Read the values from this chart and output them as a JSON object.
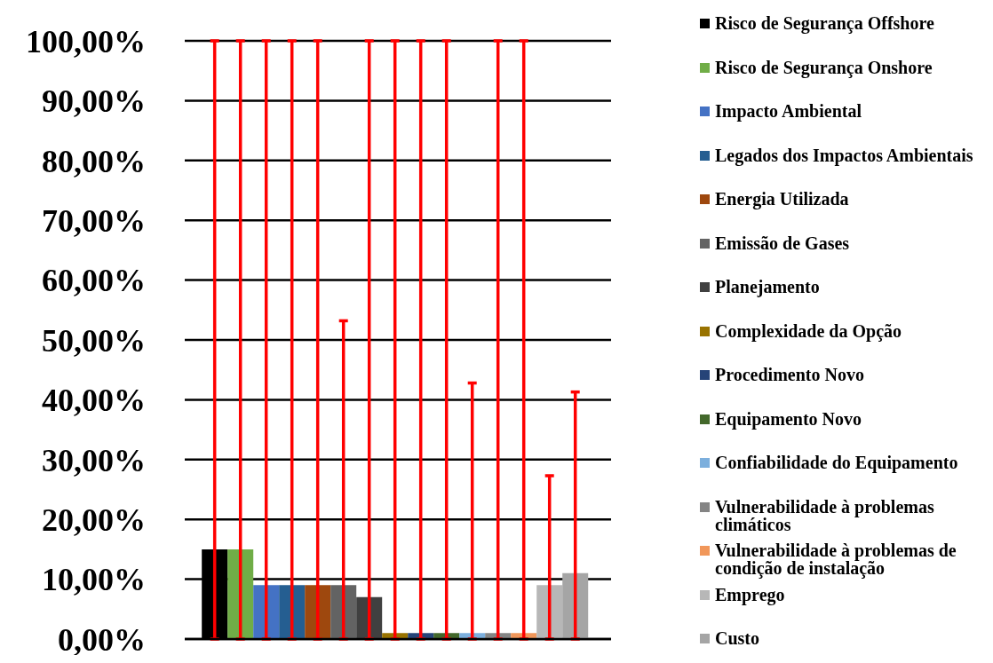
{
  "chart_data": {
    "type": "bar",
    "categories": [
      null
    ],
    "series": [
      {
        "name": "Risco de Segurança Offshore",
        "color": "#000000",
        "values": [
          15
        ],
        "errors": [
          [
            0,
            100
          ]
        ]
      },
      {
        "name": "Risco de Segurança Onshore",
        "color": "#70ad47",
        "values": [
          15
        ],
        "errors": [
          [
            0,
            100
          ]
        ]
      },
      {
        "name": "Impacto Ambiental",
        "color": "#4472c4",
        "values": [
          9
        ],
        "errors": [
          [
            0,
            100
          ]
        ]
      },
      {
        "name": "Legados dos Impactos Ambientais",
        "color": "#255e91",
        "values": [
          9
        ],
        "errors": [
          [
            0,
            100
          ]
        ]
      },
      {
        "name": "Energia Utilizada",
        "color": "#9e480e",
        "values": [
          9
        ],
        "errors": [
          [
            0,
            100
          ]
        ]
      },
      {
        "name": "Emissão de Gases",
        "color": "#636363",
        "values": [
          9
        ],
        "errors": [
          [
            0,
            53.2
          ]
        ]
      },
      {
        "name": "Planejamento",
        "color": "#404040",
        "values": [
          7
        ],
        "errors": [
          [
            0,
            100
          ]
        ]
      },
      {
        "name": "Complexidade da Opção",
        "color": "#997300",
        "values": [
          1
        ],
        "errors": [
          [
            0,
            100
          ]
        ]
      },
      {
        "name": "Procedimento Novo",
        "color": "#264478",
        "values": [
          1
        ],
        "errors": [
          [
            0,
            100
          ]
        ]
      },
      {
        "name": "Equipamento Novo",
        "color": "#43682b",
        "values": [
          1
        ],
        "errors": [
          [
            0,
            100
          ]
        ]
      },
      {
        "name": "Confiabilidade do Equipamento",
        "color": "#7cafdd",
        "values": [
          1
        ],
        "errors": [
          [
            0,
            42.8
          ]
        ]
      },
      {
        "name": "Vulnerabilidade à problemas climáticos",
        "color": "#848484",
        "values": [
          1
        ],
        "errors": [
          [
            0,
            100
          ]
        ]
      },
      {
        "name": "Vulnerabilidade à problemas de condição de instalação",
        "color": "#f1975a",
        "values": [
          1
        ],
        "errors": [
          [
            0,
            100
          ]
        ]
      },
      {
        "name": "Emprego",
        "color": "#b7b7b7",
        "values": [
          9
        ],
        "errors": [
          [
            0,
            27.3
          ]
        ]
      },
      {
        "name": "Custo",
        "color": "#a5a5a5",
        "values": [
          11
        ],
        "errors": [
          [
            0,
            41.3
          ]
        ]
      }
    ],
    "ylim": [
      0,
      100
    ],
    "yticks": [
      {
        "value": 0,
        "label": "0,00%"
      },
      {
        "value": 10,
        "label": "10,00%"
      },
      {
        "value": 20,
        "label": "20,00%"
      },
      {
        "value": 30,
        "label": "30,00%"
      },
      {
        "value": 40,
        "label": "40,00%"
      },
      {
        "value": 50,
        "label": "50,00%"
      },
      {
        "value": 60,
        "label": "60,00%"
      },
      {
        "value": 70,
        "label": "70,00%"
      },
      {
        "value": 80,
        "label": "80,00%"
      },
      {
        "value": 90,
        "label": "90,00%"
      },
      {
        "value": 100,
        "label": "100,00%"
      }
    ],
    "grid": "y",
    "legend": "right"
  }
}
